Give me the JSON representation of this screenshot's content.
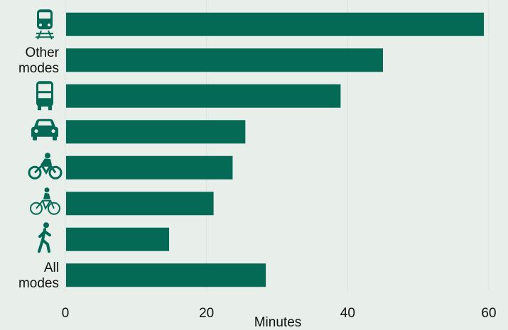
{
  "colors": {
    "bar": "#046a55",
    "icon": "#046a55",
    "background": "#e8efeb",
    "grid": "#d9e3dd"
  },
  "chart_data": {
    "type": "bar",
    "orientation": "horizontal",
    "xlabel": "Minutes",
    "xlim": [
      0,
      60
    ],
    "xticks": [
      0,
      20,
      40,
      60
    ],
    "grid": true,
    "categories": [
      {
        "label": "",
        "icon": "train-icon",
        "value": 59.3
      },
      {
        "label": "Other modes",
        "lines": [
          "Other",
          "modes"
        ],
        "icon": null,
        "value": 45.0
      },
      {
        "label": "",
        "icon": "bus-icon",
        "value": 39.0
      },
      {
        "label": "",
        "icon": "car-icon",
        "value": 25.5
      },
      {
        "label": "",
        "icon": "motorcycle-icon",
        "value": 23.7
      },
      {
        "label": "",
        "icon": "bicycle-icon",
        "value": 21.0
      },
      {
        "label": "",
        "icon": "walking-icon",
        "value": 14.7
      },
      {
        "label": "All modes",
        "lines": [
          "All",
          "modes"
        ],
        "icon": null,
        "value": 28.4
      }
    ]
  }
}
